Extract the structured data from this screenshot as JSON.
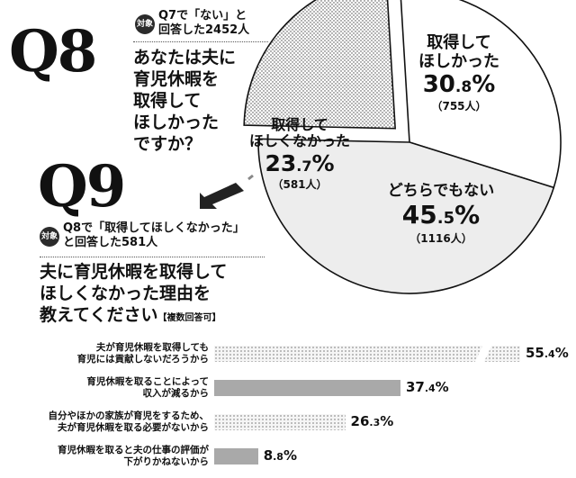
{
  "q8": {
    "number": "Q8",
    "target_tag": "対象",
    "target_line1": "Q7で「ない」と",
    "target_line2": "回答した2452人",
    "question_lines": [
      "あなたは夫に",
      "育児休暇を",
      "取得して",
      "ほしかった",
      "ですか？"
    ]
  },
  "q9": {
    "number": "Q9",
    "target_tag": "対象",
    "target_line1": "Q8で「取得してほしくなかった」",
    "target_line2": "と回答した581人",
    "question_lines": [
      "夫に育児休暇を取得して",
      "ほしくなかった理由を",
      "教えてください"
    ],
    "multi_note": "【複数回答可】"
  },
  "colors": {
    "gray_bar": "#a9a9a9",
    "light_fill": "#ededed",
    "ink": "#111111"
  },
  "chart_data": [
    {
      "type": "pie",
      "slices": [
        {
          "label_lines": [
            "取得して",
            "ほしかった"
          ],
          "value": 30.8,
          "pct_int": "30",
          "pct_dec": ".8",
          "pct_sign": "%",
          "count": "（755人）",
          "fill": "white"
        },
        {
          "label_lines": [
            "どちらでもない"
          ],
          "value": 45.5,
          "pct_int": "45",
          "pct_dec": ".5",
          "pct_sign": "%",
          "count": "（1116人）",
          "fill": "light"
        },
        {
          "label_lines": [
            "取得して",
            "ほしくなかった"
          ],
          "value": 23.7,
          "pct_int": "23",
          "pct_dec": ".7",
          "pct_sign": "%",
          "count": "（581人）",
          "fill": "dots",
          "exploded": true
        }
      ]
    },
    {
      "type": "bar",
      "orientation": "horizontal",
      "xlim": [
        0,
        60
      ],
      "bars": [
        {
          "label_lines": [
            "夫が育児休暇を取得しても",
            "育児には貢献しないだろうから"
          ],
          "value": 55.4,
          "pct_int": "55",
          "pct_dec": ".4",
          "pct_sign": "%",
          "fill": "dots",
          "broken": true
        },
        {
          "label_lines": [
            "育児休暇を取ることによって",
            "収入が減るから"
          ],
          "value": 37.4,
          "pct_int": "37",
          "pct_dec": ".4",
          "pct_sign": "%",
          "fill": "gray"
        },
        {
          "label_lines": [
            "自分やほかの家族が育児をするため、",
            "夫が育児休暇を取る必要がないから"
          ],
          "value": 26.3,
          "pct_int": "26",
          "pct_dec": ".3",
          "pct_sign": "%",
          "fill": "dots"
        },
        {
          "label_lines": [
            "育児休暇を取ると夫の仕事の評価が",
            "下がりかねないから"
          ],
          "value": 8.8,
          "pct_int": "8",
          "pct_dec": ".8",
          "pct_sign": "%",
          "fill": "gray"
        }
      ]
    }
  ]
}
